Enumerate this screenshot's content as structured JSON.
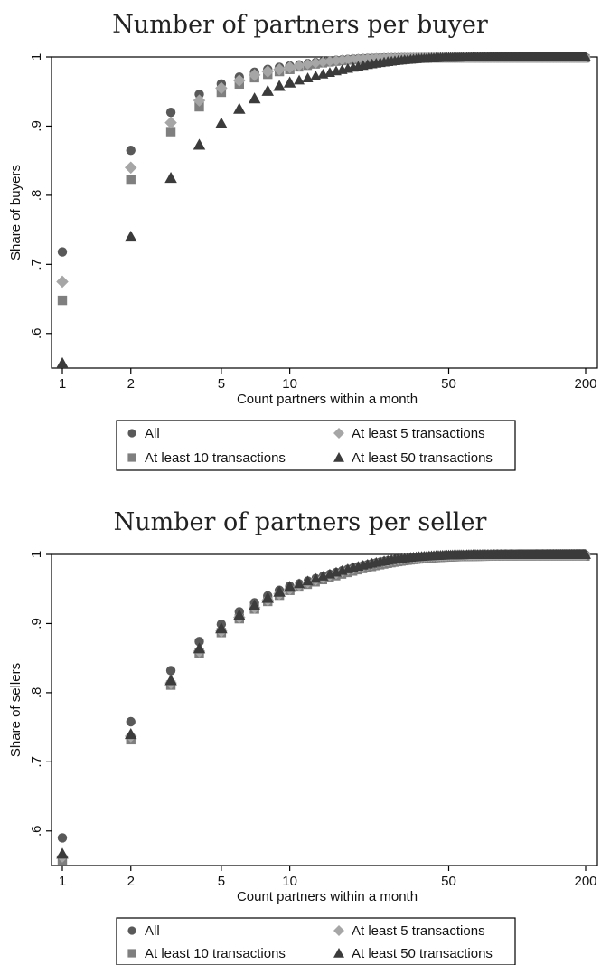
{
  "chart_data": [
    {
      "type": "scatter",
      "title": "Number of partners per buyer",
      "xlabel": "Count partners within a month",
      "ylabel": "Share of buyers",
      "xscale": "log",
      "xlim": [
        1,
        200
      ],
      "ylim": [
        0.55,
        1.0
      ],
      "xticks": [
        1,
        2,
        5,
        10,
        50,
        200
      ],
      "xtick_labels": [
        "1",
        "2",
        "5",
        "10",
        "50",
        "200"
      ],
      "yticks": [
        0.6,
        0.7,
        0.8,
        0.9,
        1.0
      ],
      "ytick_labels": [
        ".6",
        ".7",
        ".8",
        ".9",
        "1"
      ],
      "grid": false,
      "legend_position": "bottom",
      "series": [
        {
          "name": "All",
          "marker": "circle",
          "color": "#595959",
          "first_points": [
            [
              1,
              0.718
            ],
            [
              2,
              0.865
            ],
            [
              3,
              0.92
            ],
            [
              4,
              0.946
            ],
            [
              5,
              0.961
            ],
            [
              6,
              0.971
            ],
            [
              7,
              0.978
            ],
            [
              8,
              0.982
            ],
            [
              9,
              0.985
            ],
            [
              10,
              0.987
            ]
          ],
          "tail": {
            "to": 200,
            "rate": 0.2,
            "end": 1.0
          }
        },
        {
          "name": "At least 5 transactions",
          "marker": "diamond",
          "color": "#a6a6a6",
          "first_points": [
            [
              1,
              0.675
            ],
            [
              2,
              0.84
            ],
            [
              3,
              0.905
            ],
            [
              4,
              0.937
            ],
            [
              5,
              0.955
            ],
            [
              6,
              0.966
            ],
            [
              7,
              0.974
            ],
            [
              8,
              0.979
            ],
            [
              9,
              0.982
            ],
            [
              10,
              0.985
            ]
          ],
          "tail": {
            "to": 200,
            "rate": 0.2,
            "end": 0.999
          }
        },
        {
          "name": "At least 10 transactions",
          "marker": "square",
          "color": "#7f7f7f",
          "first_points": [
            [
              1,
              0.648
            ],
            [
              2,
              0.822
            ],
            [
              3,
              0.892
            ],
            [
              4,
              0.928
            ],
            [
              5,
              0.949
            ],
            [
              6,
              0.961
            ],
            [
              7,
              0.97
            ],
            [
              8,
              0.975
            ],
            [
              9,
              0.979
            ],
            [
              10,
              0.982
            ]
          ],
          "tail": {
            "to": 200,
            "rate": 0.2,
            "end": 0.998
          }
        },
        {
          "name": "At least 50 transactions",
          "marker": "triangle",
          "color": "#3b3b3b",
          "first_points": [
            [
              1,
              0.557
            ],
            [
              2,
              0.74
            ],
            [
              3,
              0.825
            ],
            [
              4,
              0.873
            ],
            [
              5,
              0.904
            ],
            [
              6,
              0.925
            ],
            [
              7,
              0.94
            ],
            [
              8,
              0.951
            ],
            [
              9,
              0.958
            ],
            [
              10,
              0.963
            ]
          ],
          "tail": {
            "to": 200,
            "rate": 0.1,
            "end": 1.0
          }
        }
      ]
    },
    {
      "type": "scatter",
      "title": "Number of partners per seller",
      "xlabel": "Count partners within a month",
      "ylabel": "Share of sellers",
      "xscale": "log",
      "xlim": [
        1,
        200
      ],
      "ylim": [
        0.55,
        1.0
      ],
      "xticks": [
        1,
        2,
        5,
        10,
        50,
        200
      ],
      "xtick_labels": [
        "1",
        "2",
        "5",
        "10",
        "50",
        "200"
      ],
      "yticks": [
        0.6,
        0.7,
        0.8,
        0.9,
        1.0
      ],
      "ytick_labels": [
        ".6",
        ".7",
        ".8",
        ".9",
        "1"
      ],
      "grid": false,
      "legend_position": "bottom",
      "series": [
        {
          "name": "All",
          "marker": "circle",
          "color": "#595959",
          "first_points": [
            [
              1,
              0.59
            ],
            [
              2,
              0.758
            ],
            [
              3,
              0.832
            ],
            [
              4,
              0.874
            ],
            [
              5,
              0.899
            ],
            [
              6,
              0.917
            ],
            [
              7,
              0.93
            ],
            [
              8,
              0.94
            ],
            [
              9,
              0.948
            ],
            [
              10,
              0.954
            ]
          ],
          "tail": {
            "to": 200,
            "rate": 0.1,
            "end": 1.0
          }
        },
        {
          "name": "At least 5 transactions",
          "marker": "diamond",
          "color": "#a6a6a6",
          "first_points": [
            [
              1,
              0.563
            ],
            [
              2,
              0.737
            ],
            [
              3,
              0.814
            ],
            [
              4,
              0.86
            ],
            [
              5,
              0.889
            ],
            [
              6,
              0.909
            ],
            [
              7,
              0.923
            ],
            [
              8,
              0.934
            ],
            [
              9,
              0.943
            ],
            [
              10,
              0.95
            ]
          ],
          "tail": {
            "to": 200,
            "rate": 0.1,
            "end": 0.999
          }
        },
        {
          "name": "At least 10 transactions",
          "marker": "square",
          "color": "#7f7f7f",
          "first_points": [
            [
              1,
              0.558
            ],
            [
              2,
              0.732
            ],
            [
              3,
              0.811
            ],
            [
              4,
              0.857
            ],
            [
              5,
              0.887
            ],
            [
              6,
              0.907
            ],
            [
              7,
              0.921
            ],
            [
              8,
              0.932
            ],
            [
              9,
              0.941
            ],
            [
              10,
              0.948
            ]
          ],
          "tail": {
            "to": 200,
            "rate": 0.09,
            "end": 0.997
          }
        },
        {
          "name": "At least 50 transactions",
          "marker": "triangle",
          "color": "#3b3b3b",
          "first_points": [
            [
              1,
              0.567
            ],
            [
              2,
              0.74
            ],
            [
              3,
              0.818
            ],
            [
              4,
              0.864
            ],
            [
              5,
              0.893
            ],
            [
              6,
              0.912
            ],
            [
              7,
              0.926
            ],
            [
              8,
              0.937
            ],
            [
              9,
              0.946
            ],
            [
              10,
              0.953
            ]
          ],
          "tail": {
            "to": 200,
            "rate": 0.1,
            "end": 1.0
          }
        }
      ]
    }
  ]
}
